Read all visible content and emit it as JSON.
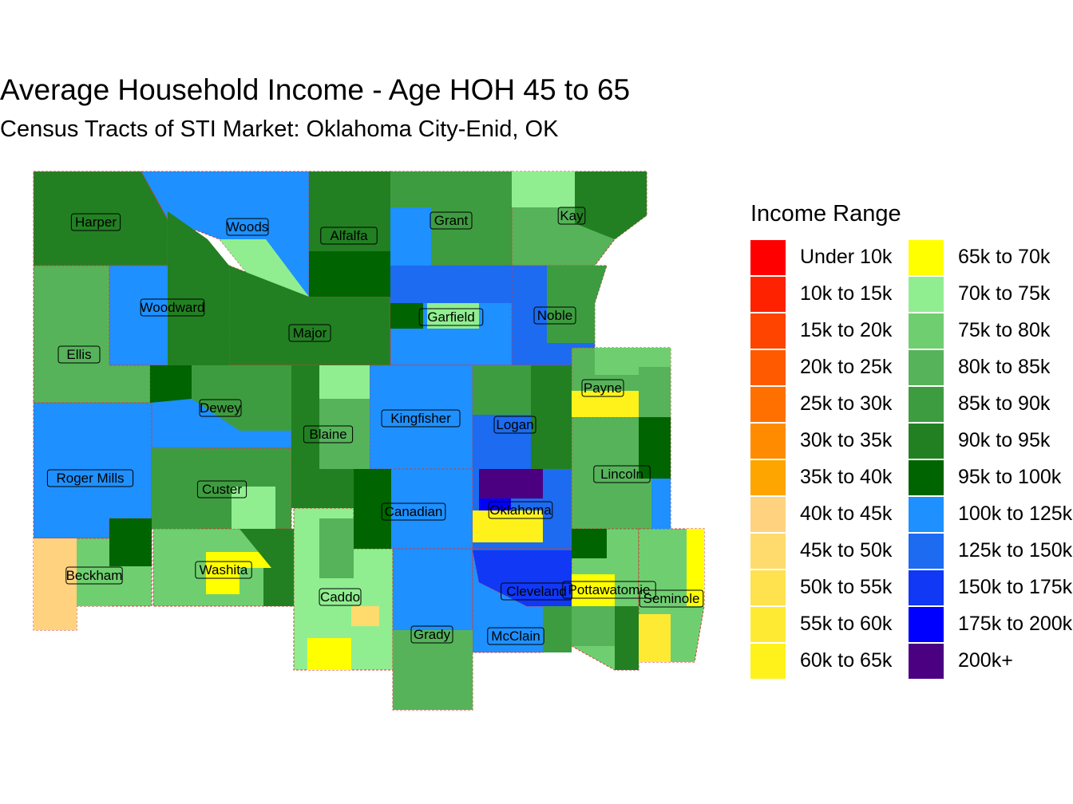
{
  "title": "Average Household Income - Age HOH 45 to 65",
  "subtitle": "Census Tracts of STI Market: Oklahoma City-Enid, OK",
  "legend": {
    "title": "Income Range",
    "items": [
      {
        "label": "Under 10k",
        "color": "#FF0000"
      },
      {
        "label": "10k to 15k",
        "color": "#FF2200"
      },
      {
        "label": "15k to 20k",
        "color": "#FF4400"
      },
      {
        "label": "20k to 25k",
        "color": "#FF5A00"
      },
      {
        "label": "25k to 30k",
        "color": "#FF7000"
      },
      {
        "label": "30k to 35k",
        "color": "#FF8C00"
      },
      {
        "label": "35k to 40k",
        "color": "#FFA500"
      },
      {
        "label": "40k to 45k",
        "color": "#FFD27F"
      },
      {
        "label": "45k to 50k",
        "color": "#FFDB6E"
      },
      {
        "label": "50k to 55k",
        "color": "#FFE24D"
      },
      {
        "label": "55k to 60k",
        "color": "#FFEA33"
      },
      {
        "label": "60k to 65k",
        "color": "#FFF21A"
      },
      {
        "label": "65k to 70k",
        "color": "#FFFF00"
      },
      {
        "label": "70k to 75k",
        "color": "#90EE90"
      },
      {
        "label": "75k to 80k",
        "color": "#6FCF70"
      },
      {
        "label": "80k to 85k",
        "color": "#56B35A"
      },
      {
        "label": "85k to 90k",
        "color": "#3E9C40"
      },
      {
        "label": "90k to 95k",
        "color": "#228022"
      },
      {
        "label": "95k to 100k",
        "color": "#006400"
      },
      {
        "label": "100k to 125k",
        "color": "#1E90FF"
      },
      {
        "label": "125k to 150k",
        "color": "#1C6BF0"
      },
      {
        "label": "150k to 175k",
        "color": "#1038F5"
      },
      {
        "label": "175k to 200k",
        "color": "#0000FF"
      },
      {
        "label": "200k+",
        "color": "#4B0082"
      }
    ]
  },
  "counties": [
    {
      "name": "Harper",
      "fill": "#228022"
    },
    {
      "name": "Woods",
      "fill": "#1E90FF"
    },
    {
      "name": "Alfalfa",
      "fill": "#228022"
    },
    {
      "name": "Grant",
      "fill": "#3E9C40"
    },
    {
      "name": "Kay",
      "fill": "#56B35A"
    },
    {
      "name": "Woodward",
      "fill": "#1E90FF"
    },
    {
      "name": "Major",
      "fill": "#228022"
    },
    {
      "name": "Garfield",
      "fill": "#1E90FF"
    },
    {
      "name": "Noble",
      "fill": "#1C6BF0"
    },
    {
      "name": "Ellis",
      "fill": "#56B35A"
    },
    {
      "name": "Dewey",
      "fill": "#1E90FF"
    },
    {
      "name": "Blaine",
      "fill": "#1E90FF"
    },
    {
      "name": "Kingfisher",
      "fill": "#1E90FF"
    },
    {
      "name": "Logan",
      "fill": "#228022"
    },
    {
      "name": "Payne",
      "fill": "#56B35A"
    },
    {
      "name": "Roger Mills",
      "fill": "#1E90FF"
    },
    {
      "name": "Custer",
      "fill": "#3E9C40"
    },
    {
      "name": "Canadian",
      "fill": "#1E90FF"
    },
    {
      "name": "Oklahoma",
      "fill": "#1C6BF0"
    },
    {
      "name": "Lincoln",
      "fill": "#56B35A"
    },
    {
      "name": "Beckham",
      "fill": "#6FCF70"
    },
    {
      "name": "Washita",
      "fill": "#6FCF70"
    },
    {
      "name": "Caddo",
      "fill": "#90EE90"
    },
    {
      "name": "Grady",
      "fill": "#1E90FF"
    },
    {
      "name": "McClain",
      "fill": "#1E90FF"
    },
    {
      "name": "Cleveland",
      "fill": "#1C6BF0"
    },
    {
      "name": "Pottawatomie",
      "fill": "#6FCF70"
    },
    {
      "name": "Seminole",
      "fill": "#6FCF70"
    }
  ]
}
